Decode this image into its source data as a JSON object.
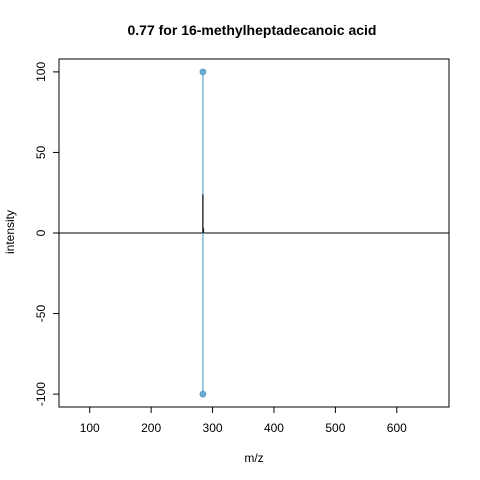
{
  "chart_data": {
    "type": "scatter",
    "title": "0.77 for 16-methylheptadecanoic acid",
    "xlabel": "m/z",
    "ylabel": "intensity",
    "xlim": [
      50,
      685
    ],
    "ylim": [
      -108,
      108
    ],
    "x_ticks": [
      100,
      200,
      300,
      400,
      500,
      600
    ],
    "y_ticks": [
      -100,
      -50,
      0,
      50,
      100
    ],
    "grid": false,
    "baseline_y": 0,
    "series": [
      {
        "color": "#6aaed6",
        "marker": "circle",
        "points": [
          {
            "x": 284.3,
            "y": 100
          },
          {
            "x": 284.3,
            "y": -100
          }
        ]
      },
      {
        "color": "#222222",
        "marker": "none",
        "points": [
          {
            "x": 284.3,
            "y": 24
          },
          {
            "x": 285.3,
            "y": 3
          }
        ]
      }
    ]
  }
}
